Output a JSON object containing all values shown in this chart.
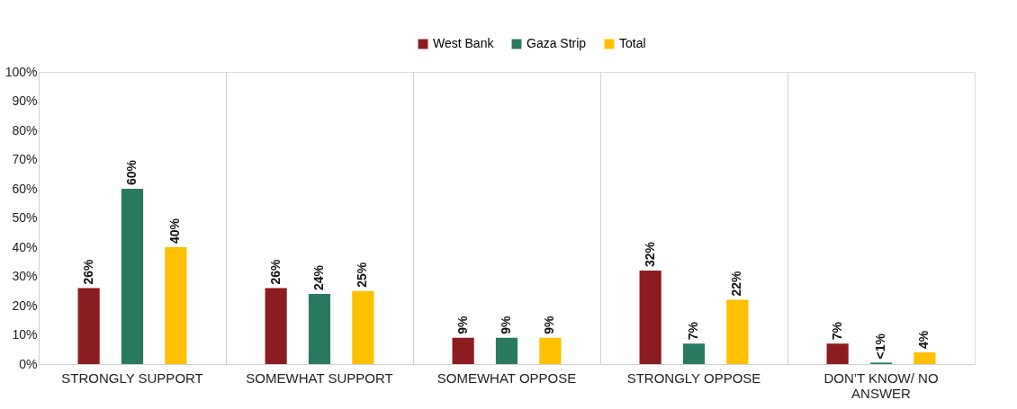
{
  "chart_data": {
    "type": "bar",
    "categories": [
      "STRONGLY SUPPORT",
      "SOMEWHAT SUPPORT",
      "SOMEWHAT OPPOSE",
      "STRONGLY OPPOSE",
      "DON’T KNOW/ NO ANSWER"
    ],
    "series": [
      {
        "name": "West Bank",
        "color": "#8b1c20",
        "values": [
          26,
          26,
          9,
          32,
          7
        ],
        "value_labels": [
          "26%",
          "26%",
          "9%",
          "32%",
          "7%"
        ]
      },
      {
        "name": "Gaza Strip",
        "color": "#2a7a62",
        "values": [
          60,
          24,
          9,
          7,
          0.5
        ],
        "value_labels": [
          "60%",
          "24%",
          "9%",
          "7%",
          "<1%"
        ]
      },
      {
        "name": "Total",
        "color": "#ffc000",
        "values": [
          40,
          25,
          9,
          22,
          4
        ],
        "value_labels": [
          "40%",
          "25%",
          "9%",
          "22%",
          "4%"
        ]
      }
    ],
    "ylim": [
      0,
      100
    ],
    "yticks": [
      {
        "value": 0,
        "label": "0%"
      },
      {
        "value": 10,
        "label": "10%"
      },
      {
        "value": 20,
        "label": "20%"
      },
      {
        "value": 30,
        "label": "30%"
      },
      {
        "value": 40,
        "label": "40%"
      },
      {
        "value": 50,
        "label": "50%"
      },
      {
        "value": 60,
        "label": "60%"
      },
      {
        "value": 70,
        "label": "70%"
      },
      {
        "value": 80,
        "label": "80%"
      },
      {
        "value": 90,
        "label": "90%"
      },
      {
        "value": 100,
        "label": "100%"
      }
    ],
    "grid": "x",
    "legend": "top"
  }
}
